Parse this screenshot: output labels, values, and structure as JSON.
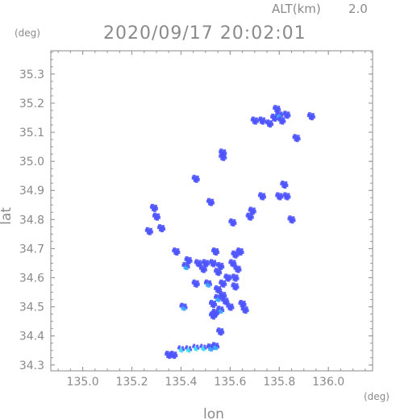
{
  "header": {
    "altitude_label": "ALT(km)",
    "altitude_value": "2.0",
    "timestamp": "2020/09/17 20:02:01",
    "y_unit": "(deg)",
    "x_unit": "(deg)"
  },
  "chart_data": {
    "type": "heatmap",
    "title": "2020/09/17 20:02:01",
    "xlabel": "lon",
    "ylabel": "lat",
    "xlim": [
      134.87,
      136.18
    ],
    "ylim": [
      34.28,
      35.38
    ],
    "x_ticks": [
      "135.0",
      "135.2",
      "135.4",
      "135.6",
      "135.8",
      "136.0"
    ],
    "y_ticks": [
      "34.3",
      "34.4",
      "34.5",
      "34.6",
      "34.7",
      "34.8",
      "34.9",
      "35.0",
      "35.1",
      "35.2",
      "35.3"
    ],
    "grid": false,
    "colors": {
      "weak": "#4b52ff",
      "moderate": "#3aa8ff",
      "strong": "#2ee0f0"
    },
    "cells": [
      {
        "lon": 135.7,
        "lat": 35.14,
        "intensity": "weak"
      },
      {
        "lon": 135.73,
        "lat": 35.14,
        "intensity": "weak"
      },
      {
        "lon": 135.76,
        "lat": 35.13,
        "intensity": "weak"
      },
      {
        "lon": 135.78,
        "lat": 35.15,
        "intensity": "weak"
      },
      {
        "lon": 135.8,
        "lat": 35.16,
        "intensity": "moderate"
      },
      {
        "lon": 135.81,
        "lat": 35.14,
        "intensity": "weak"
      },
      {
        "lon": 135.83,
        "lat": 35.16,
        "intensity": "weak"
      },
      {
        "lon": 135.79,
        "lat": 35.18,
        "intensity": "weak"
      },
      {
        "lon": 135.93,
        "lat": 35.155,
        "intensity": "weak"
      },
      {
        "lon": 135.87,
        "lat": 35.08,
        "intensity": "weak"
      },
      {
        "lon": 135.57,
        "lat": 35.03,
        "intensity": "weak"
      },
      {
        "lon": 135.57,
        "lat": 35.015,
        "intensity": "weak"
      },
      {
        "lon": 135.46,
        "lat": 34.94,
        "intensity": "weak"
      },
      {
        "lon": 135.82,
        "lat": 34.92,
        "intensity": "weak"
      },
      {
        "lon": 135.8,
        "lat": 34.88,
        "intensity": "weak"
      },
      {
        "lon": 135.83,
        "lat": 34.88,
        "intensity": "weak"
      },
      {
        "lon": 135.73,
        "lat": 34.88,
        "intensity": "weak"
      },
      {
        "lon": 135.52,
        "lat": 34.86,
        "intensity": "weak"
      },
      {
        "lon": 135.69,
        "lat": 34.83,
        "intensity": "weak"
      },
      {
        "lon": 135.29,
        "lat": 34.84,
        "intensity": "weak"
      },
      {
        "lon": 135.3,
        "lat": 34.81,
        "intensity": "weak"
      },
      {
        "lon": 135.68,
        "lat": 34.81,
        "intensity": "weak"
      },
      {
        "lon": 135.85,
        "lat": 34.8,
        "intensity": "weak"
      },
      {
        "lon": 135.61,
        "lat": 34.79,
        "intensity": "weak"
      },
      {
        "lon": 135.32,
        "lat": 34.77,
        "intensity": "weak"
      },
      {
        "lon": 135.27,
        "lat": 34.76,
        "intensity": "weak"
      },
      {
        "lon": 135.38,
        "lat": 34.69,
        "intensity": "weak"
      },
      {
        "lon": 135.54,
        "lat": 34.69,
        "intensity": "weak"
      },
      {
        "lon": 135.62,
        "lat": 34.68,
        "intensity": "weak"
      },
      {
        "lon": 135.64,
        "lat": 34.69,
        "intensity": "weak"
      },
      {
        "lon": 135.43,
        "lat": 34.66,
        "intensity": "weak"
      },
      {
        "lon": 135.42,
        "lat": 34.64,
        "intensity": "moderate"
      },
      {
        "lon": 135.47,
        "lat": 34.65,
        "intensity": "weak"
      },
      {
        "lon": 135.5,
        "lat": 34.65,
        "intensity": "weak"
      },
      {
        "lon": 135.53,
        "lat": 34.65,
        "intensity": "weak"
      },
      {
        "lon": 135.56,
        "lat": 34.64,
        "intensity": "weak"
      },
      {
        "lon": 135.49,
        "lat": 34.63,
        "intensity": "weak"
      },
      {
        "lon": 135.55,
        "lat": 34.62,
        "intensity": "weak"
      },
      {
        "lon": 135.61,
        "lat": 34.65,
        "intensity": "weak"
      },
      {
        "lon": 135.63,
        "lat": 34.63,
        "intensity": "weak"
      },
      {
        "lon": 135.59,
        "lat": 34.6,
        "intensity": "weak"
      },
      {
        "lon": 135.57,
        "lat": 34.58,
        "intensity": "weak"
      },
      {
        "lon": 135.62,
        "lat": 34.6,
        "intensity": "weak"
      },
      {
        "lon": 135.62,
        "lat": 34.57,
        "intensity": "weak"
      },
      {
        "lon": 135.46,
        "lat": 34.58,
        "intensity": "weak"
      },
      {
        "lon": 135.51,
        "lat": 34.58,
        "intensity": "moderate"
      },
      {
        "lon": 135.55,
        "lat": 34.56,
        "intensity": "weak"
      },
      {
        "lon": 135.57,
        "lat": 34.54,
        "intensity": "weak"
      },
      {
        "lon": 135.55,
        "lat": 34.53,
        "intensity": "moderate"
      },
      {
        "lon": 135.58,
        "lat": 34.52,
        "intensity": "weak"
      },
      {
        "lon": 135.53,
        "lat": 34.51,
        "intensity": "weak"
      },
      {
        "lon": 135.56,
        "lat": 34.49,
        "intensity": "moderate"
      },
      {
        "lon": 135.54,
        "lat": 34.48,
        "intensity": "weak"
      },
      {
        "lon": 135.6,
        "lat": 34.5,
        "intensity": "weak"
      },
      {
        "lon": 135.65,
        "lat": 34.51,
        "intensity": "weak"
      },
      {
        "lon": 135.66,
        "lat": 34.49,
        "intensity": "weak"
      },
      {
        "lon": 135.53,
        "lat": 34.47,
        "intensity": "weak"
      },
      {
        "lon": 135.41,
        "lat": 34.5,
        "intensity": "moderate"
      },
      {
        "lon": 135.56,
        "lat": 34.415,
        "intensity": "weak"
      },
      {
        "lon": 135.35,
        "lat": 34.335,
        "intensity": "weak"
      },
      {
        "lon": 135.37,
        "lat": 34.335,
        "intensity": "weak"
      },
      {
        "lon": 135.4,
        "lat": 34.355,
        "intensity": "strong"
      },
      {
        "lon": 135.43,
        "lat": 34.355,
        "intensity": "strong"
      },
      {
        "lon": 135.46,
        "lat": 34.36,
        "intensity": "strong"
      },
      {
        "lon": 135.49,
        "lat": 34.36,
        "intensity": "strong"
      },
      {
        "lon": 135.52,
        "lat": 34.36,
        "intensity": "moderate"
      },
      {
        "lon": 135.54,
        "lat": 34.365,
        "intensity": "moderate"
      }
    ]
  }
}
